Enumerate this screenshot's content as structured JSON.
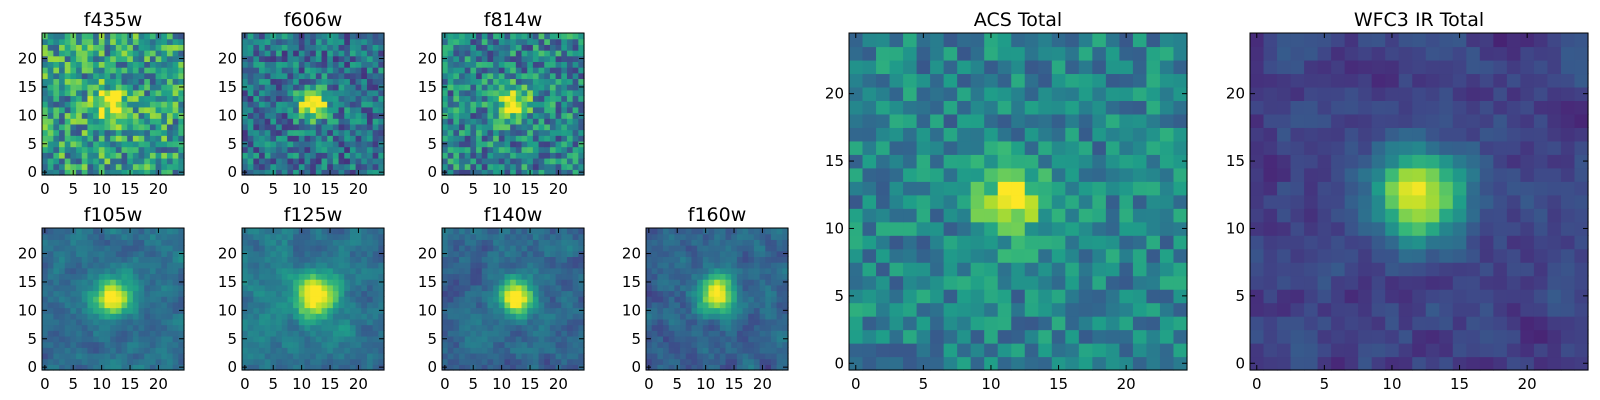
{
  "chart_data": [
    {
      "type": "heatmap",
      "title": "f435w",
      "peak": [
        12,
        12
      ],
      "sigma": 2.2,
      "amp": 0.45,
      "bg": 0.55,
      "noise": 0.3,
      "seed": 11,
      "corr": 0.0,
      "xticks": [
        "0",
        "5",
        "10",
        "15",
        "20"
      ],
      "yticks": [
        "0",
        "5",
        "10",
        "15",
        "20"
      ],
      "xlim": [
        0,
        25
      ],
      "ylim": [
        0,
        25
      ]
    },
    {
      "type": "heatmap",
      "title": "f606w",
      "peak": [
        12,
        12
      ],
      "sigma": 1.9,
      "amp": 0.75,
      "bg": 0.38,
      "noise": 0.24,
      "seed": 23,
      "corr": 0.0,
      "xticks": [
        "0",
        "5",
        "10",
        "15",
        "20"
      ],
      "yticks": [
        "0",
        "5",
        "10",
        "15",
        "20"
      ],
      "xlim": [
        0,
        25
      ],
      "ylim": [
        0,
        25
      ]
    },
    {
      "type": "heatmap",
      "title": "f814w",
      "peak": [
        12,
        12
      ],
      "sigma": 2.0,
      "amp": 0.6,
      "bg": 0.45,
      "noise": 0.27,
      "seed": 37,
      "corr": 0.0,
      "xticks": [
        "0",
        "5",
        "10",
        "15",
        "20"
      ],
      "yticks": [
        "0",
        "5",
        "10",
        "15",
        "20"
      ],
      "xlim": [
        0,
        25
      ],
      "ylim": [
        0,
        25
      ]
    },
    {
      "type": "heatmap",
      "title": "f105w",
      "peak": [
        12,
        12.5
      ],
      "sigma": 2.4,
      "amp": 0.7,
      "bg": 0.36,
      "noise": 0.14,
      "seed": 41,
      "corr": 0.6,
      "xticks": [
        "0",
        "5",
        "10",
        "15",
        "20"
      ],
      "yticks": [
        "0",
        "5",
        "10",
        "15",
        "20"
      ],
      "xlim": [
        0,
        25
      ],
      "ylim": [
        0,
        25
      ]
    },
    {
      "type": "heatmap",
      "title": "f125w",
      "peak": [
        12.5,
        12.5
      ],
      "sigma": 2.6,
      "amp": 0.68,
      "bg": 0.4,
      "noise": 0.14,
      "seed": 53,
      "corr": 0.6,
      "xticks": [
        "0",
        "5",
        "10",
        "15",
        "20"
      ],
      "yticks": [
        "0",
        "5",
        "10",
        "15",
        "20"
      ],
      "xlim": [
        0,
        25
      ],
      "ylim": [
        0,
        25
      ]
    },
    {
      "type": "heatmap",
      "title": "f140w",
      "peak": [
        12.5,
        12.5
      ],
      "sigma": 2.2,
      "amp": 0.72,
      "bg": 0.34,
      "noise": 0.14,
      "seed": 67,
      "corr": 0.6,
      "xticks": [
        "0",
        "5",
        "10",
        "15",
        "20"
      ],
      "yticks": [
        "0",
        "5",
        "10",
        "15",
        "20"
      ],
      "xlim": [
        0,
        25
      ],
      "ylim": [
        0,
        25
      ]
    },
    {
      "type": "heatmap",
      "title": "f160w",
      "peak": [
        12,
        13
      ],
      "sigma": 2.4,
      "amp": 0.72,
      "bg": 0.32,
      "noise": 0.14,
      "seed": 79,
      "corr": 0.6,
      "xticks": [
        "0",
        "5",
        "10",
        "15",
        "20"
      ],
      "yticks": [
        "0",
        "5",
        "10",
        "15",
        "20"
      ],
      "xlim": [
        0,
        25
      ],
      "ylim": [
        0,
        25
      ]
    },
    {
      "type": "heatmap",
      "title": "ACS Total",
      "peak": [
        11.5,
        12
      ],
      "sigma": 1.8,
      "amp": 0.55,
      "bg": 0.45,
      "noise": 0.18,
      "seed": 97,
      "corr": 0.0,
      "xticks": [
        "0",
        "5",
        "10",
        "15",
        "20"
      ],
      "yticks": [
        "0",
        "5",
        "10",
        "15",
        "20"
      ],
      "xlim": [
        0,
        25
      ],
      "ylim": [
        0,
        25
      ]
    },
    {
      "type": "heatmap",
      "title": "WFC3 IR Total",
      "peak": [
        12,
        12.5
      ],
      "sigma": 2.3,
      "amp": 0.78,
      "bg": 0.2,
      "noise": 0.11,
      "seed": 113,
      "corr": 0.5,
      "xticks": [
        "0",
        "5",
        "10",
        "15",
        "20"
      ],
      "yticks": [
        "0",
        "5",
        "10",
        "15",
        "20"
      ],
      "xlim": [
        0,
        25
      ],
      "ylim": [
        0,
        25
      ]
    }
  ],
  "colors": {
    "axis": "#000000",
    "cmap": [
      "#440154",
      "#482878",
      "#3e4a89",
      "#31688e",
      "#26828e",
      "#1f9e89",
      "#35b779",
      "#6ece58",
      "#b5de2b",
      "#fde725"
    ]
  }
}
